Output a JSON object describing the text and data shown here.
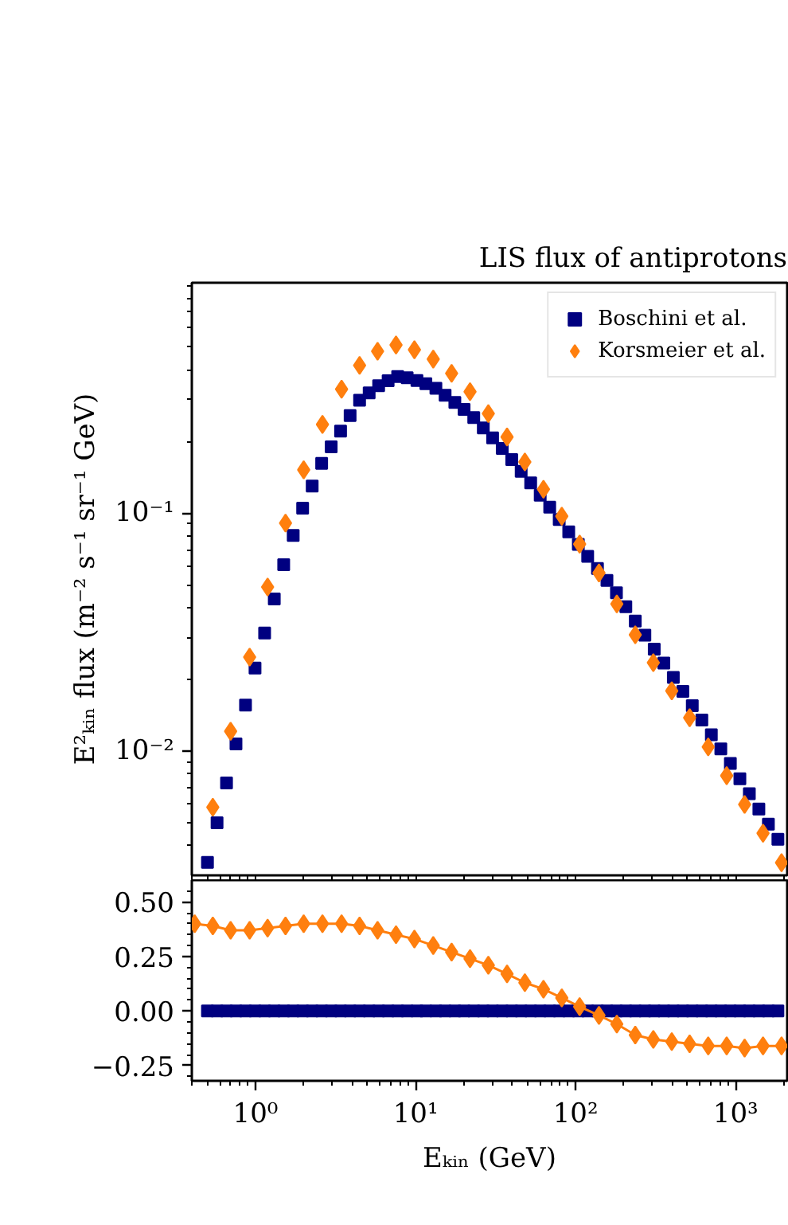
{
  "chart_data": [
    {
      "type": "scatter",
      "title": "LIS flux of antiprotons",
      "ylabel": "E²ₖᵢₙ flux (m⁻² s⁻¹ sr⁻¹ GeV)",
      "log": "xy",
      "tick_labels": "y",
      "legend": "top right",
      "xlim": [
        0.4,
        2100
      ],
      "xticks": [
        {
          "value": 0.4,
          "label": null
        },
        {
          "value": 0.5,
          "label": null
        },
        {
          "value": 0.6,
          "label": null
        },
        {
          "value": 0.7,
          "label": null
        },
        {
          "value": 0.8,
          "label": null
        },
        {
          "value": 0.9,
          "label": null
        },
        {
          "value": 1,
          "label": null
        },
        {
          "value": 2,
          "label": null
        },
        {
          "value": 3,
          "label": null
        },
        {
          "value": 4,
          "label": null
        },
        {
          "value": 5,
          "label": null
        },
        {
          "value": 6,
          "label": null
        },
        {
          "value": 7,
          "label": null
        },
        {
          "value": 8,
          "label": null
        },
        {
          "value": 9,
          "label": null
        },
        {
          "value": 10,
          "label": null
        },
        {
          "value": 20,
          "label": null
        },
        {
          "value": 30,
          "label": null
        },
        {
          "value": 40,
          "label": null
        },
        {
          "value": 50,
          "label": null
        },
        {
          "value": 60,
          "label": null
        },
        {
          "value": 70,
          "label": null
        },
        {
          "value": 80,
          "label": null
        },
        {
          "value": 90,
          "label": null
        },
        {
          "value": 100,
          "label": null
        },
        {
          "value": 200,
          "label": null
        },
        {
          "value": 300,
          "label": null
        },
        {
          "value": 400,
          "label": null
        },
        {
          "value": 500,
          "label": null
        },
        {
          "value": 600,
          "label": null
        },
        {
          "value": 700,
          "label": null
        },
        {
          "value": 800,
          "label": null
        },
        {
          "value": 900,
          "label": null
        },
        {
          "value": 1000,
          "label": null
        },
        {
          "value": 2000,
          "label": null
        }
      ],
      "ylim": [
        0.003,
        0.93
      ],
      "yticks": [
        {
          "value": 0.004,
          "label": null
        },
        {
          "value": 0.005,
          "label": null
        },
        {
          "value": 0.006,
          "label": null
        },
        {
          "value": 0.007,
          "label": null
        },
        {
          "value": 0.008,
          "label": null
        },
        {
          "value": 0.009,
          "label": null
        },
        {
          "value": 0.01,
          "label": "10⁻²"
        },
        {
          "value": 0.02,
          "label": null
        },
        {
          "value": 0.03,
          "label": null
        },
        {
          "value": 0.04,
          "label": null
        },
        {
          "value": 0.05,
          "label": null
        },
        {
          "value": 0.06,
          "label": null
        },
        {
          "value": 0.07,
          "label": null
        },
        {
          "value": 0.08,
          "label": null
        },
        {
          "value": 0.09,
          "label": null
        },
        {
          "value": 0.1,
          "label": "10⁻¹"
        },
        {
          "value": 0.2,
          "label": null
        },
        {
          "value": 0.3,
          "label": null
        },
        {
          "value": 0.4,
          "label": null
        },
        {
          "value": 0.5,
          "label": null
        },
        {
          "value": 0.6,
          "label": null
        },
        {
          "value": 0.7,
          "label": null
        },
        {
          "value": 0.8,
          "label": null
        },
        {
          "value": 0.9,
          "label": null
        }
      ],
      "series": [
        {
          "name": "Boschini et al.",
          "color": "#000080",
          "marker": "square",
          "x": [
            0.501,
            0.575,
            0.659,
            0.755,
            0.866,
            0.993,
            1.14,
            1.31,
            1.5,
            1.72,
            1.97,
            2.26,
            2.59,
            2.97,
            3.4,
            3.9,
            4.47,
            5.13,
            5.88,
            6.74,
            7.73,
            8.86,
            10.2,
            11.6,
            13.4,
            15.3,
            17.6,
            20.1,
            23.1,
            26.5,
            30.3,
            34.8,
            39.9,
            45.7,
            52.4,
            60.1,
            68.9,
            79.0,
            90.6,
            104,
            119,
            137,
            157,
            180,
            206,
            236,
            271,
            310,
            356,
            408,
            468,
            536,
            615,
            705,
            808,
            927,
            1063,
            1218,
            1397,
            1602,
            1837
          ],
          "values": [
            0.0034,
            0.00499,
            0.00734,
            0.0107,
            0.0156,
            0.0223,
            0.0313,
            0.0436,
            0.0607,
            0.0805,
            0.105,
            0.13,
            0.162,
            0.19,
            0.221,
            0.257,
            0.298,
            0.32,
            0.343,
            0.36,
            0.375,
            0.371,
            0.361,
            0.35,
            0.335,
            0.313,
            0.292,
            0.273,
            0.252,
            0.228,
            0.207,
            0.187,
            0.168,
            0.15,
            0.134,
            0.119,
            0.106,
            0.094,
            0.0834,
            0.0739,
            0.0658,
            0.0585,
            0.0521,
            0.0462,
            0.0404,
            0.0352,
            0.0307,
            0.0268,
            0.0234,
            0.0204,
            0.0178,
            0.0155,
            0.0135,
            0.0117,
            0.0102,
            0.00887,
            0.00764,
            0.00661,
            0.0057,
            0.00492,
            0.00425
          ]
        },
        {
          "name": "Korsmeier et al.",
          "color": "#ff7f0e",
          "marker": "diamond",
          "x": [
            0.541,
            0.699,
            0.919,
            1.19,
            1.54,
            2.0,
            2.62,
            3.45,
            4.47,
            5.79,
            7.55,
            9.84,
            12.9,
            16.8,
            21.9,
            28.5,
            37.3,
            48.2,
            63.0,
            82.0,
            106,
            140,
            181,
            236,
            306,
            399,
            516,
            674,
            879,
            1138,
            1483,
            1936
          ],
          "values": [
            0.0058,
            0.0121,
            0.0248,
            0.0489,
            0.0908,
            0.152,
            0.236,
            0.332,
            0.418,
            0.479,
            0.509,
            0.486,
            0.444,
            0.387,
            0.324,
            0.262,
            0.209,
            0.164,
            0.126,
            0.097,
            0.0741,
            0.056,
            0.0415,
            0.0308,
            0.0235,
            0.0179,
            0.0138,
            0.0104,
            0.00787,
            0.00596,
            0.00451,
            0.00339
          ]
        }
      ]
    },
    {
      "type": "line",
      "xlabel": "Eₖᵢₙ (GeV)",
      "log": "x",
      "xlim": [
        0.4,
        2100
      ],
      "xticks": [
        {
          "value": 0.4,
          "label": null
        },
        {
          "value": 0.5,
          "label": null
        },
        {
          "value": 0.6,
          "label": null
        },
        {
          "value": 0.7,
          "label": null
        },
        {
          "value": 0.8,
          "label": null
        },
        {
          "value": 0.9,
          "label": null
        },
        {
          "value": 1,
          "label": "10⁰"
        },
        {
          "value": 2,
          "label": null
        },
        {
          "value": 3,
          "label": null
        },
        {
          "value": 4,
          "label": null
        },
        {
          "value": 5,
          "label": null
        },
        {
          "value": 6,
          "label": null
        },
        {
          "value": 7,
          "label": null
        },
        {
          "value": 8,
          "label": null
        },
        {
          "value": 9,
          "label": null
        },
        {
          "value": 10,
          "label": "10¹"
        },
        {
          "value": 20,
          "label": null
        },
        {
          "value": 30,
          "label": null
        },
        {
          "value": 40,
          "label": null
        },
        {
          "value": 50,
          "label": null
        },
        {
          "value": 60,
          "label": null
        },
        {
          "value": 70,
          "label": null
        },
        {
          "value": 80,
          "label": null
        },
        {
          "value": 90,
          "label": null
        },
        {
          "value": 100,
          "label": "10²"
        },
        {
          "value": 200,
          "label": null
        },
        {
          "value": 300,
          "label": null
        },
        {
          "value": 400,
          "label": null
        },
        {
          "value": 500,
          "label": null
        },
        {
          "value": 600,
          "label": null
        },
        {
          "value": 700,
          "label": null
        },
        {
          "value": 800,
          "label": null
        },
        {
          "value": 900,
          "label": null
        },
        {
          "value": 1000,
          "label": "10³"
        },
        {
          "value": 2000,
          "label": null
        }
      ],
      "ylim": [
        -0.32,
        0.6
      ],
      "yticks": [
        {
          "value": 0.55,
          "label": null
        },
        {
          "value": 0.5,
          "label": "0.50"
        },
        {
          "value": 0.45,
          "label": null
        },
        {
          "value": 0.4,
          "label": null
        },
        {
          "value": 0.35,
          "label": null
        },
        {
          "value": 0.3,
          "label": null
        },
        {
          "value": 0.25,
          "label": "0.25"
        },
        {
          "value": 0.2,
          "label": null
        },
        {
          "value": 0.15,
          "label": null
        },
        {
          "value": 0.1,
          "label": null
        },
        {
          "value": 0.05,
          "label": null
        },
        {
          "value": 0,
          "label": "0.00"
        },
        {
          "value": -0.05,
          "label": null
        },
        {
          "value": -0.1,
          "label": null
        },
        {
          "value": -0.15,
          "label": null
        },
        {
          "value": -0.2,
          "label": null
        },
        {
          "value": -0.25,
          "label": "−0.25"
        },
        {
          "value": -0.3,
          "label": null
        }
      ],
      "series": [
        {
          "type": "scatter",
          "marker": "square",
          "color": "#000080",
          "x": [
            0.501,
            0.575,
            0.659,
            0.755,
            0.866,
            0.993,
            1.14,
            1.31,
            1.5,
            1.72,
            1.97,
            2.26,
            2.59,
            2.97,
            3.4,
            3.9,
            4.47,
            5.13,
            5.88,
            6.74,
            7.73,
            8.86,
            10.2,
            11.6,
            13.4,
            15.3,
            17.6,
            20.1,
            23.1,
            26.5,
            30.3,
            34.8,
            39.9,
            45.7,
            52.4,
            60.1,
            68.9,
            79.0,
            90.6,
            104,
            119,
            137,
            157,
            180,
            206,
            236,
            271,
            310,
            356,
            408,
            468,
            536,
            615,
            705,
            808,
            927,
            1063,
            1218,
            1397,
            1602,
            1837
          ],
          "values": [
            0,
            0,
            0,
            0,
            0,
            0,
            0,
            0,
            0,
            0,
            0,
            0,
            0,
            0,
            0,
            0,
            0,
            0,
            0,
            0,
            0,
            0,
            0,
            0,
            0,
            0,
            0,
            0,
            0,
            0,
            0,
            0,
            0,
            0,
            0,
            0,
            0,
            0,
            0,
            0,
            0,
            0,
            0,
            0,
            0,
            0,
            0,
            0,
            0,
            0,
            0,
            0,
            0,
            0,
            0,
            0,
            0,
            0,
            0,
            0,
            0
          ]
        },
        {
          "type": "line",
          "marker": "diamond",
          "line_style": "solid",
          "color": "#ff7f0e",
          "x": [
            0.417,
            0.541,
            0.699,
            0.919,
            1.19,
            1.54,
            2.0,
            2.62,
            3.45,
            4.47,
            5.79,
            7.55,
            9.84,
            12.9,
            16.8,
            21.9,
            28.5,
            37.3,
            48.2,
            63.0,
            82.0,
            106,
            140,
            181,
            236,
            306,
            399,
            516,
            674,
            879,
            1138,
            1483,
            1936
          ],
          "values": [
            0.4,
            0.39,
            0.37,
            0.37,
            0.38,
            0.39,
            0.4,
            0.4,
            0.4,
            0.39,
            0.37,
            0.35,
            0.33,
            0.3,
            0.27,
            0.24,
            0.21,
            0.17,
            0.13,
            0.1,
            0.06,
            0.02,
            -0.02,
            -0.06,
            -0.11,
            -0.13,
            -0.14,
            -0.15,
            -0.16,
            -0.16,
            -0.17,
            -0.16,
            -0.16
          ]
        }
      ]
    }
  ]
}
